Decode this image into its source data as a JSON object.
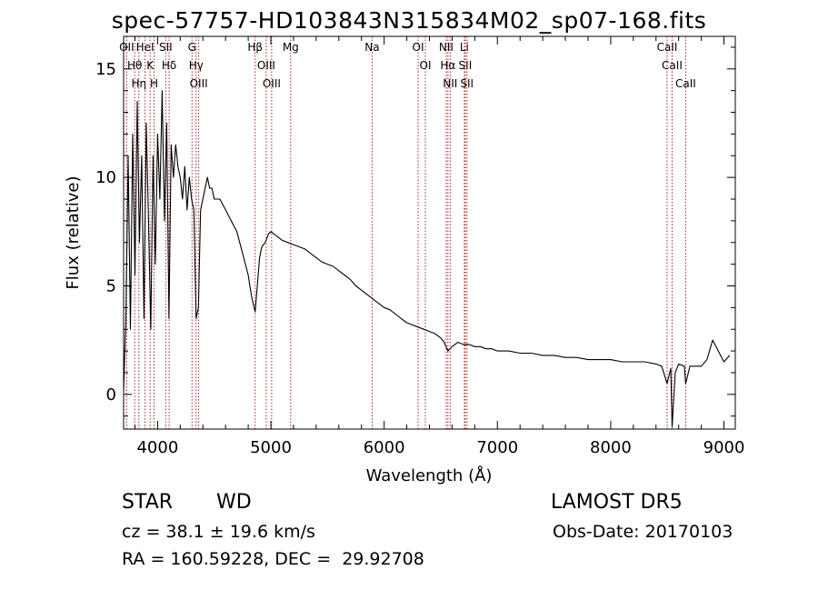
{
  "title": "spec-57757-HD103843N315834M02_sp07-168.fits",
  "info": {
    "class": "STAR",
    "subclass": "WD",
    "survey": "LAMOST DR5",
    "cz": "cz = 38.1 ± 19.6 km/s",
    "obs_date": "Obs-Date: 20170103",
    "radec": "RA = 160.59228, DEC =  29.92708"
  },
  "chart_data": {
    "type": "line",
    "title": "spec-57757-HD103843N315834M02_sp07-168.fits",
    "xlabel": "Wavelength (Å)",
    "ylabel": "Flux (relative)",
    "xlim": [
      3700,
      9100
    ],
    "ylim": [
      -1.6,
      16.5
    ],
    "xticks": [
      4000,
      5000,
      6000,
      7000,
      8000,
      9000
    ],
    "yticks": [
      0,
      5,
      10,
      15
    ],
    "line_color": "#000000",
    "marker_color": "#b22222",
    "series": [
      {
        "x": [
          3700,
          3720,
          3740,
          3760,
          3780,
          3800,
          3820,
          3840,
          3860,
          3880,
          3900,
          3920,
          3940,
          3960,
          3980,
          4000,
          4020,
          4040,
          4060,
          4080,
          4100,
          4120,
          4140,
          4160,
          4180,
          4200,
          4220,
          4240,
          4260,
          4280,
          4300,
          4320,
          4340,
          4360,
          4380,
          4400,
          4420,
          4440,
          4460,
          4480,
          4500,
          4550,
          4600,
          4650,
          4700,
          4750,
          4800,
          4830,
          4861,
          4880,
          4900,
          4920,
          4950,
          4980,
          5000,
          5050,
          5100,
          5150,
          5200,
          5250,
          5300,
          5350,
          5400,
          5450,
          5500,
          5550,
          5600,
          5650,
          5700,
          5750,
          5800,
          5850,
          5900,
          5950,
          6000,
          6050,
          6100,
          6150,
          6200,
          6250,
          6300,
          6350,
          6400,
          6450,
          6500,
          6530,
          6563,
          6600,
          6650,
          6700,
          6750,
          6800,
          6850,
          6900,
          6950,
          7000,
          7100,
          7200,
          7300,
          7400,
          7500,
          7600,
          7700,
          7800,
          7900,
          8000,
          8100,
          8200,
          8300,
          8400,
          8450,
          8498,
          8530,
          8542,
          8570,
          8600,
          8650,
          8662,
          8700,
          8750,
          8800,
          8850,
          8900,
          8950,
          9000,
          9050
        ],
        "y": [
          0.2,
          3.5,
          11.0,
          3.0,
          12.0,
          5.5,
          13.5,
          7.0,
          11.0,
          3.5,
          12.5,
          8.0,
          3.0,
          11.0,
          6.0,
          12.0,
          9.0,
          14.0,
          8.0,
          12.5,
          3.5,
          11.5,
          10.0,
          11.5,
          10.5,
          10.0,
          9.0,
          10.5,
          8.5,
          10.0,
          9.0,
          8.5,
          3.5,
          4.0,
          8.5,
          9.0,
          9.5,
          10.0,
          9.5,
          9.5,
          9.0,
          9.0,
          8.5,
          8.0,
          7.5,
          6.5,
          5.5,
          4.5,
          3.8,
          5.0,
          6.3,
          6.8,
          7.0,
          7.4,
          7.5,
          7.3,
          7.1,
          7.0,
          6.9,
          6.8,
          6.7,
          6.5,
          6.3,
          6.1,
          6.0,
          5.9,
          5.7,
          5.5,
          5.3,
          5.0,
          4.8,
          4.6,
          4.4,
          4.2,
          4.0,
          3.9,
          3.7,
          3.5,
          3.3,
          3.2,
          3.1,
          3.0,
          2.9,
          2.8,
          2.6,
          2.4,
          2.0,
          2.2,
          2.4,
          2.3,
          2.3,
          2.2,
          2.2,
          2.1,
          2.1,
          2.0,
          2.0,
          1.9,
          1.9,
          1.8,
          1.8,
          1.7,
          1.7,
          1.6,
          1.6,
          1.6,
          1.5,
          1.5,
          1.5,
          1.4,
          1.3,
          0.5,
          1.2,
          -1.5,
          1.0,
          1.4,
          1.3,
          0.5,
          1.3,
          1.3,
          1.3,
          1.6,
          2.5,
          2.0,
          1.5,
          1.8
        ]
      }
    ],
    "lines": [
      {
        "label": "OII",
        "x": 3727
      },
      {
        "label": "Hθ",
        "x": 3798
      },
      {
        "label": "Hη",
        "x": 3835
      },
      {
        "label": "HeI",
        "x": 3889
      },
      {
        "label": "K",
        "x": 3934
      },
      {
        "label": "H",
        "x": 3969
      },
      {
        "label": "SII",
        "x": 4072
      },
      {
        "label": "Hδ",
        "x": 4102
      },
      {
        "label": "G",
        "x": 4304
      },
      {
        "label": "Hγ",
        "x": 4340
      },
      {
        "label": "OIII",
        "x": 4363
      },
      {
        "label": "Hβ",
        "x": 4861
      },
      {
        "label": "OIII",
        "x": 4959
      },
      {
        "label": "OIII",
        "x": 5007
      },
      {
        "label": "Mg",
        "x": 5175
      },
      {
        "label": "Na",
        "x": 5894
      },
      {
        "label": "OI",
        "x": 6300
      },
      {
        "label": "OI",
        "x": 6364
      },
      {
        "label": "NII",
        "x": 6548
      },
      {
        "label": "Hα",
        "x": 6563
      },
      {
        "label": "NII",
        "x": 6583
      },
      {
        "label": "Li",
        "x": 6708
      },
      {
        "label": "SII",
        "x": 6716
      },
      {
        "label": "SII",
        "x": 6731
      },
      {
        "label": "CaII",
        "x": 8498
      },
      {
        "label": "CaII",
        "x": 8542
      },
      {
        "label": "CaII",
        "x": 8662
      }
    ]
  }
}
